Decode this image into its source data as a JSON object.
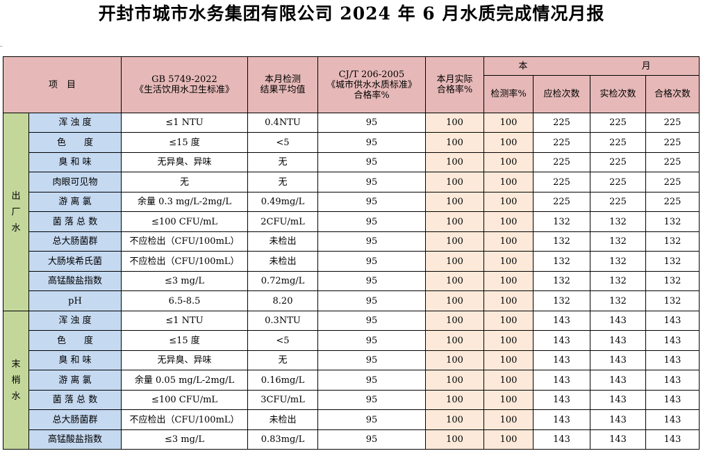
{
  "title": "开封市城市水务集团有限公司 2024 年 6 月水质完成情况月报",
  "header": {
    "item": "项　目",
    "gb_line1": "GB 5749-2022",
    "gb_line2": "《生活饮用水卫生标准》",
    "avg_line1": "本月检测",
    "avg_line2": "结果平均值",
    "cj_line1": "CJ/T 206-2005",
    "cj_line2": "《城市供水水质标准》",
    "cj_line3": "合格率%",
    "actual_line1": "本月实际",
    "actual_line2": "合格率%",
    "month_left": "本",
    "month_right": "月",
    "detect_rate": "检测率%",
    "should_count": "应检次数",
    "actual_count": "实检次数",
    "pass_count": "合格次数"
  },
  "groups": [
    {
      "label_chars": [
        "出",
        "厂",
        "水"
      ],
      "rows": [
        {
          "item": "浑 浊 度",
          "standard": "≤1 NTU",
          "avg": "0.4NTU",
          "cj_rate": "95",
          "actual_rate": "100",
          "detect_rate": "100",
          "should": "225",
          "actual": "225",
          "pass": "225"
        },
        {
          "item": "色　　度",
          "standard": "≤15 度",
          "avg": "<5",
          "cj_rate": "95",
          "actual_rate": "100",
          "detect_rate": "100",
          "should": "225",
          "actual": "225",
          "pass": "225"
        },
        {
          "item": "臭 和 味",
          "standard": "无异臭、异味",
          "avg": "无",
          "cj_rate": "95",
          "actual_rate": "100",
          "detect_rate": "100",
          "should": "225",
          "actual": "225",
          "pass": "225"
        },
        {
          "item": "肉眼可见物",
          "standard": "无",
          "avg": "无",
          "cj_rate": "95",
          "actual_rate": "100",
          "detect_rate": "100",
          "should": "225",
          "actual": "225",
          "pass": "225"
        },
        {
          "item": "游 离 氯",
          "standard": "余量 0.3 mg/L-2mg/L",
          "avg": "0.49mg/L",
          "cj_rate": "95",
          "actual_rate": "100",
          "detect_rate": "100",
          "should": "225",
          "actual": "225",
          "pass": "225"
        },
        {
          "item": "菌 落 总 数",
          "standard": "≤100 CFU/mL",
          "avg": "2CFU/mL",
          "cj_rate": "95",
          "actual_rate": "100",
          "detect_rate": "100",
          "should": "132",
          "actual": "132",
          "pass": "132"
        },
        {
          "item": "总大肠菌群",
          "standard": "不应检出（CFU/100mL）",
          "avg": "未检出",
          "cj_rate": "95",
          "actual_rate": "100",
          "detect_rate": "100",
          "should": "132",
          "actual": "132",
          "pass": "132"
        },
        {
          "item": "大肠埃希氏菌",
          "standard": "不应检出（CFU/100mL）",
          "avg": "未检出",
          "cj_rate": "95",
          "actual_rate": "100",
          "detect_rate": "100",
          "should": "132",
          "actual": "132",
          "pass": "132"
        },
        {
          "item": "高锰酸盐指数",
          "standard": "≤3 mg/L",
          "avg": "0.72mg/L",
          "cj_rate": "95",
          "actual_rate": "100",
          "detect_rate": "100",
          "should": "132",
          "actual": "132",
          "pass": "132"
        },
        {
          "item": "pH",
          "standard": "6.5-8.5",
          "avg": "8.20",
          "cj_rate": "95",
          "actual_rate": "100",
          "detect_rate": "100",
          "should": "132",
          "actual": "132",
          "pass": "132"
        }
      ]
    },
    {
      "label_chars": [
        "末",
        "梢",
        "水"
      ],
      "rows": [
        {
          "item": "浑 浊 度",
          "standard": "≤1 NTU",
          "avg": "0.3NTU",
          "cj_rate": "95",
          "actual_rate": "100",
          "detect_rate": "100",
          "should": "143",
          "actual": "143",
          "pass": "143"
        },
        {
          "item": "色　　度",
          "standard": "≤15 度",
          "avg": "<5",
          "cj_rate": "95",
          "actual_rate": "100",
          "detect_rate": "100",
          "should": "143",
          "actual": "143",
          "pass": "143"
        },
        {
          "item": "臭 和 味",
          "standard": "无异臭、异味",
          "avg": "无",
          "cj_rate": "95",
          "actual_rate": "100",
          "detect_rate": "100",
          "should": "143",
          "actual": "143",
          "pass": "143"
        },
        {
          "item": "游 离 氯",
          "standard": "余量 0.05 mg/L-2mg/L",
          "avg": "0.16mg/L",
          "cj_rate": "95",
          "actual_rate": "100",
          "detect_rate": "100",
          "should": "143",
          "actual": "143",
          "pass": "143"
        },
        {
          "item": "菌 落 总 数",
          "standard": "≤100 CFU/mL",
          "avg": "3CFU/mL",
          "cj_rate": "95",
          "actual_rate": "100",
          "detect_rate": "100",
          "should": "143",
          "actual": "143",
          "pass": "143"
        },
        {
          "item": "总大肠菌群",
          "standard": "不应检出（CFU/100mL）",
          "avg": "未检出",
          "cj_rate": "95",
          "actual_rate": "100",
          "detect_rate": "100",
          "should": "143",
          "actual": "143",
          "pass": "143"
        },
        {
          "item": "高锰酸盐指数",
          "standard": "≤3 mg/L",
          "avg": "0.83mg/L",
          "cj_rate": "95",
          "actual_rate": "100",
          "detect_rate": "100",
          "should": "143",
          "actual": "143",
          "pass": "143"
        }
      ]
    }
  ]
}
